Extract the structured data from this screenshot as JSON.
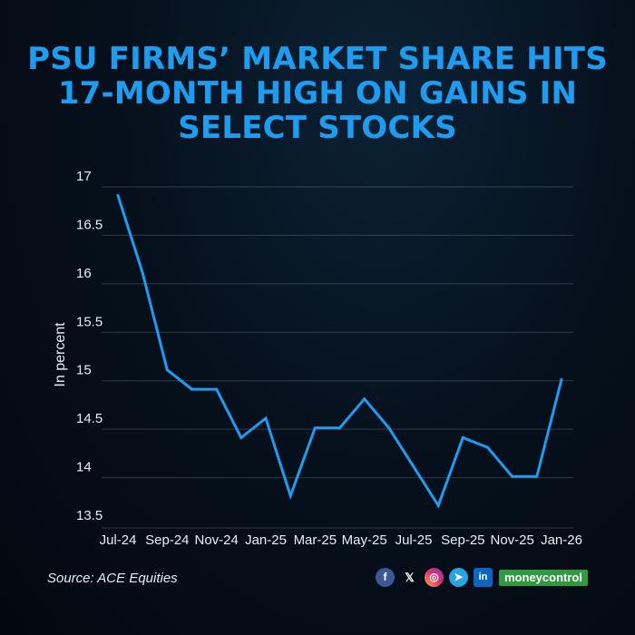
{
  "title_lines": [
    "PSU FIRMS’ MARKET SHARE HITS",
    "17-MONTH HIGH ON GAINS IN",
    "SELECT STOCKS"
  ],
  "source": "Source: ACE Equities",
  "brand": "moneycontrol",
  "colors": {
    "accent": "#1e9cf0",
    "brand_green": "#2f9a42"
  },
  "social_icons": [
    "facebook-icon",
    "x-icon",
    "instagram-icon",
    "telegram-icon",
    "linkedin-icon"
  ],
  "chart_data": {
    "type": "line",
    "title": "PSU FIRMS’ MARKET SHARE HITS 17-MONTH HIGH ON GAINS IN SELECT STOCKS",
    "ylabel": "In percent",
    "xlabel": "",
    "ylim": [
      13.5,
      17
    ],
    "yticks": [
      13.5,
      14,
      14.5,
      15,
      15.5,
      16,
      16.5,
      17
    ],
    "x": [
      "Jul-24",
      "Aug-24",
      "Sep-24",
      "Oct-24",
      "Nov-24",
      "Dec-24",
      "Jan-25",
      "Feb-25",
      "Mar-25",
      "Apr-25",
      "May-25",
      "Jun-25",
      "Jul-25",
      "Aug-25",
      "Sep-25",
      "Oct-25",
      "Nov-25",
      "Dec-25",
      "Jan-26"
    ],
    "xtick_labels": [
      "Jul-24",
      "Sep-24",
      "Nov-24",
      "Jan-25",
      "Mar-25",
      "May-25",
      "Jul-25",
      "Sep-25",
      "Nov-25",
      "Jan-26"
    ],
    "values": [
      16.8,
      16.0,
      15.0,
      14.8,
      14.8,
      14.3,
      14.5,
      13.7,
      14.4,
      14.4,
      14.7,
      14.4,
      14.0,
      13.6,
      14.3,
      14.2,
      13.9,
      13.9,
      14.9
    ],
    "grid": true,
    "line_color": "#1e9cf0"
  }
}
